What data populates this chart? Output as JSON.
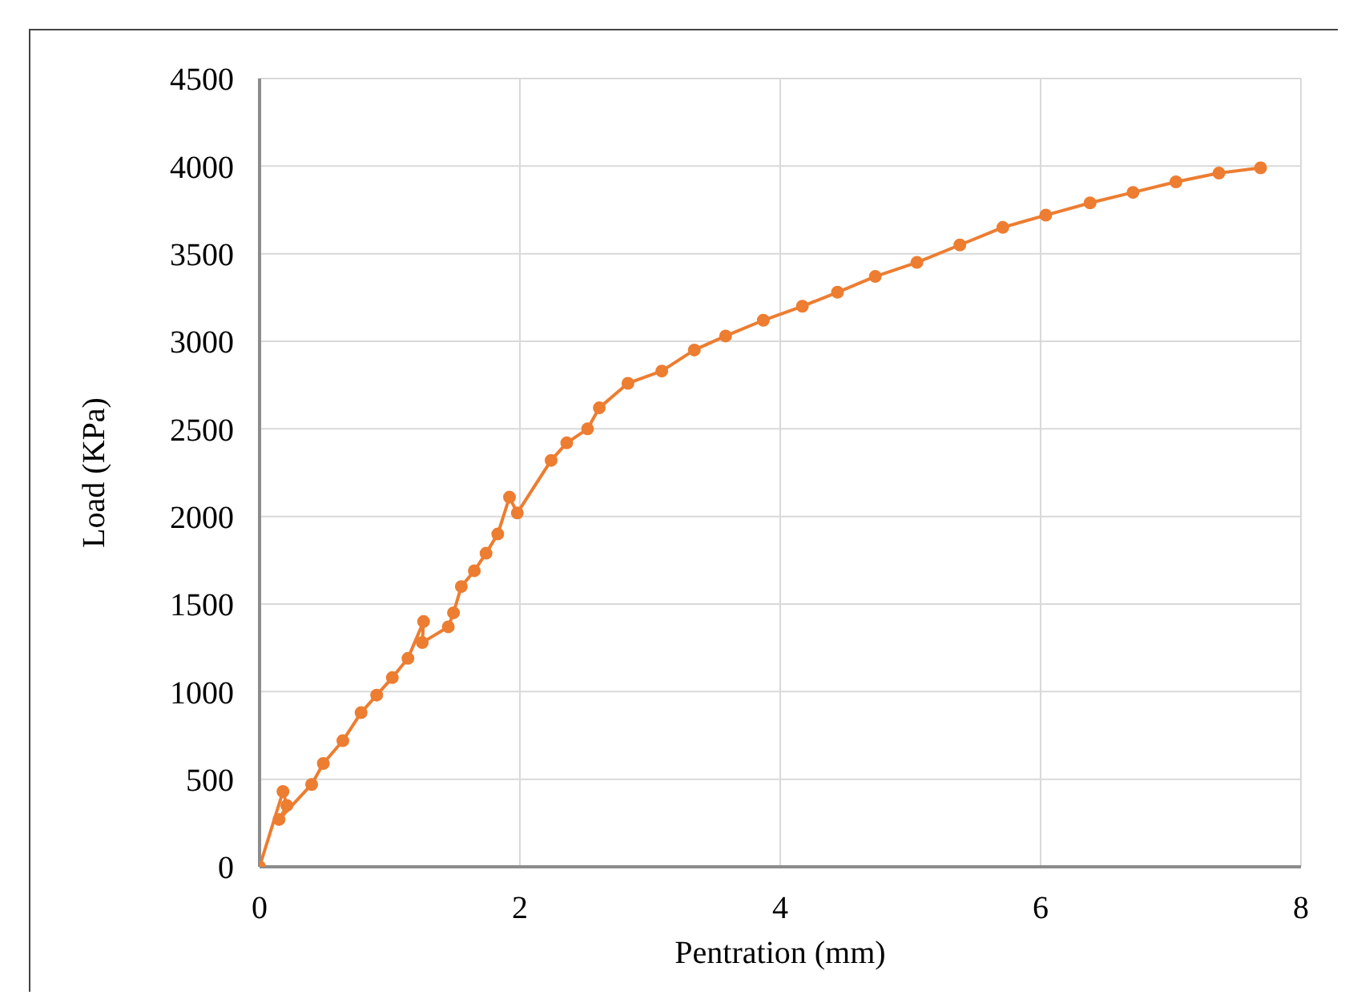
{
  "chart_data": {
    "type": "line",
    "xlabel": "Pentration (mm)",
    "ylabel": "Load (KPa)",
    "x": [
      0,
      0.18,
      0.21,
      0.15,
      0.4,
      0.49,
      0.64,
      0.78,
      0.9,
      1.02,
      1.14,
      1.26,
      1.25,
      1.45,
      1.49,
      1.55,
      1.65,
      1.74,
      1.83,
      1.92,
      1.98,
      2.24,
      2.36,
      2.52,
      2.61,
      2.83,
      3.09,
      3.34,
      3.58,
      3.87,
      4.17,
      4.44,
      4.73,
      5.05,
      5.38,
      5.71,
      6.04,
      6.38,
      6.71,
      7.04,
      7.37,
      7.69
    ],
    "series": [
      {
        "color": "#ed7d31",
        "values": [
          0,
          430,
          350,
          270,
          470,
          590,
          720,
          880,
          980,
          1080,
          1190,
          1400,
          1280,
          1370,
          1450,
          1600,
          1690,
          1790,
          1900,
          2110,
          2020,
          2320,
          2420,
          2500,
          2620,
          2760,
          2830,
          2950,
          3030,
          3120,
          3200,
          3280,
          3370,
          3450,
          3550,
          3650,
          3720,
          3790,
          3850,
          3910,
          3960,
          3990
        ]
      }
    ],
    "xlim": [
      0,
      8
    ],
    "xticks": [
      0,
      2,
      4,
      6,
      8
    ],
    "ylim": [
      0,
      4500
    ],
    "yticks": [
      0,
      500,
      1000,
      1500,
      2000,
      2500,
      3000,
      3500,
      4000,
      4500
    ],
    "grid": true,
    "marker": "circle",
    "line_style": "solid"
  }
}
